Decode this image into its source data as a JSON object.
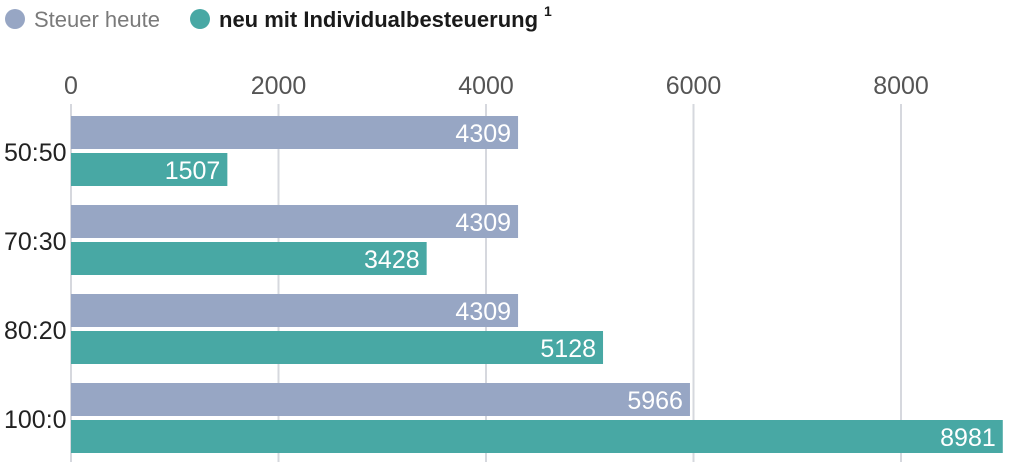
{
  "chart_data": {
    "type": "bar",
    "orientation": "horizontal",
    "categories": [
      "50:50",
      "70:30",
      "80:20",
      "100:0"
    ],
    "series": [
      {
        "name": "Steuer heute",
        "color": "#97a6c4",
        "values": [
          4309,
          4309,
          4309,
          5966
        ]
      },
      {
        "name": "neu mit Individualbesteuerung",
        "color": "#48a8a4",
        "values": [
          1507,
          3428,
          5128,
          8981
        ]
      }
    ],
    "legend_footnote": "1",
    "x_ticks": [
      0,
      2000,
      4000,
      6000,
      8000
    ],
    "xlim": [
      0,
      9000
    ],
    "axis_position": "top",
    "grid": true,
    "legend_position": "top-left",
    "value_labels": "inside-end"
  }
}
